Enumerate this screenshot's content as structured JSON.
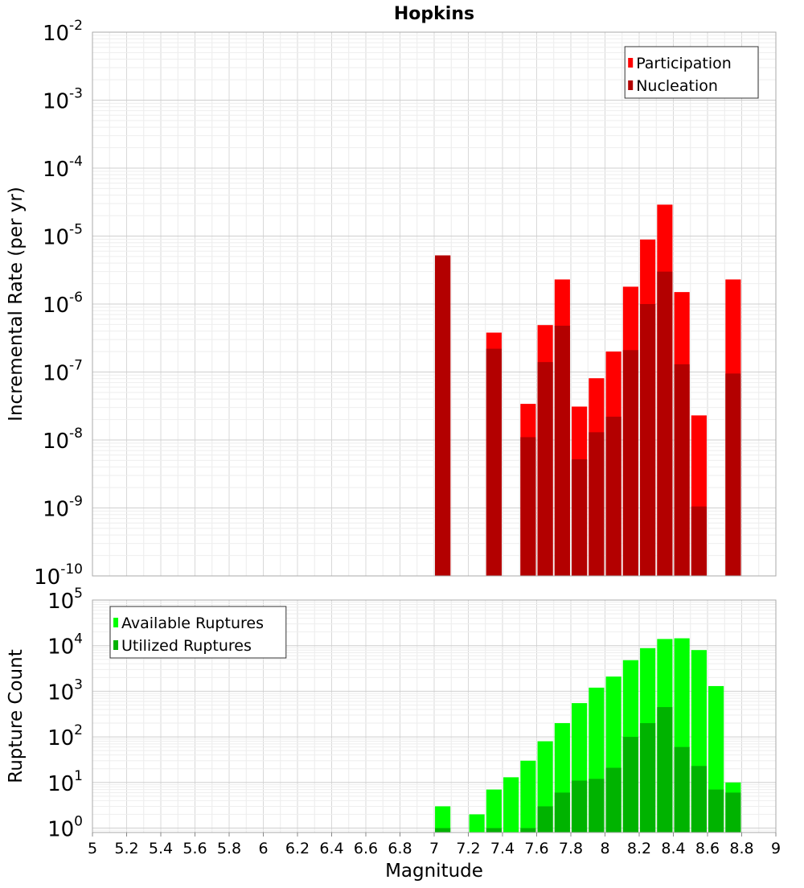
{
  "chart_data": [
    {
      "type": "bar",
      "title": "Hopkins",
      "xlabel": "",
      "ylabel": "Incremental Rate (per yr)",
      "yscale": "log",
      "ylim": [
        1e-10,
        0.01
      ],
      "xlim": [
        5,
        9
      ],
      "ytick_exponents": [
        "-10",
        "-9",
        "-8",
        "-7",
        "-6",
        "-5",
        "-4",
        "-3",
        "-2"
      ],
      "ytick_base": "10",
      "legend": {
        "placement": "top-right",
        "entries": [
          "Participation",
          "Nucleation"
        ]
      },
      "grid": true,
      "bar_width": 0.09,
      "series": [
        {
          "name": "Participation",
          "color": "#ff0000",
          "x": [
            7.05,
            7.35,
            7.55,
            7.65,
            7.75,
            7.85,
            7.95,
            8.05,
            8.15,
            8.25,
            8.35,
            8.45,
            8.55,
            8.75
          ],
          "values": [
            5.2e-06,
            3.8e-07,
            3.4e-08,
            4.9e-07,
            2.3e-06,
            3.1e-08,
            8.1e-08,
            2e-07,
            1.8e-06,
            8.9e-06,
            2.9e-05,
            1.5e-06,
            2.3e-08,
            2.3e-06
          ]
        },
        {
          "name": "Nucleation",
          "color": "#b30000",
          "x": [
            7.05,
            7.35,
            7.55,
            7.65,
            7.75,
            7.85,
            7.95,
            8.05,
            8.15,
            8.25,
            8.35,
            8.45,
            8.55,
            8.75
          ],
          "values": [
            5.2e-06,
            2.2e-07,
            1.1e-08,
            1.4e-07,
            4.8e-07,
            5.2e-09,
            1.3e-08,
            2.2e-08,
            2.1e-07,
            1e-06,
            3e-06,
            1.3e-07,
            1.05e-09,
            9.5e-08
          ]
        }
      ]
    },
    {
      "type": "bar",
      "title": "",
      "xlabel": "Magnitude",
      "ylabel": "Rupture Count",
      "yscale": "log",
      "ylim": [
        0.8,
        100000.0
      ],
      "xlim": [
        5,
        9
      ],
      "ytick_exponents": [
        "0",
        "1",
        "2",
        "3",
        "4",
        "5"
      ],
      "ytick_base": "10",
      "xticks": [
        "5",
        "5.2",
        "5.4",
        "5.6",
        "5.8",
        "6",
        "6.2",
        "6.4",
        "6.6",
        "6.8",
        "7",
        "7.2",
        "7.4",
        "7.6",
        "7.8",
        "8",
        "8.2",
        "8.4",
        "8.6",
        "8.8",
        "9"
      ],
      "legend": {
        "placement": "top-left",
        "entries": [
          "Available Ruptures",
          "Utilized Ruptures"
        ]
      },
      "grid": true,
      "bar_width": 0.09,
      "series": [
        {
          "name": "Available Ruptures",
          "color": "#00ff00",
          "x": [
            7.05,
            7.25,
            7.35,
            7.45,
            7.55,
            7.65,
            7.75,
            7.85,
            7.95,
            8.05,
            8.15,
            8.25,
            8.35,
            8.45,
            8.55,
            8.65,
            8.75
          ],
          "values": [
            3,
            2,
            7,
            13,
            30,
            80,
            200,
            550,
            1200,
            2100,
            4800,
            8800,
            14000,
            14500,
            8000,
            1300,
            10
          ]
        },
        {
          "name": "Utilized Ruptures",
          "color": "#00b300",
          "x": [
            7.05,
            7.35,
            7.55,
            7.65,
            7.75,
            7.85,
            7.95,
            8.05,
            8.15,
            8.25,
            8.35,
            8.45,
            8.55,
            8.65,
            8.75
          ],
          "values": [
            1,
            1,
            1,
            3,
            6,
            11,
            12,
            21,
            100,
            200,
            450,
            60,
            23,
            7,
            6
          ]
        }
      ]
    }
  ]
}
